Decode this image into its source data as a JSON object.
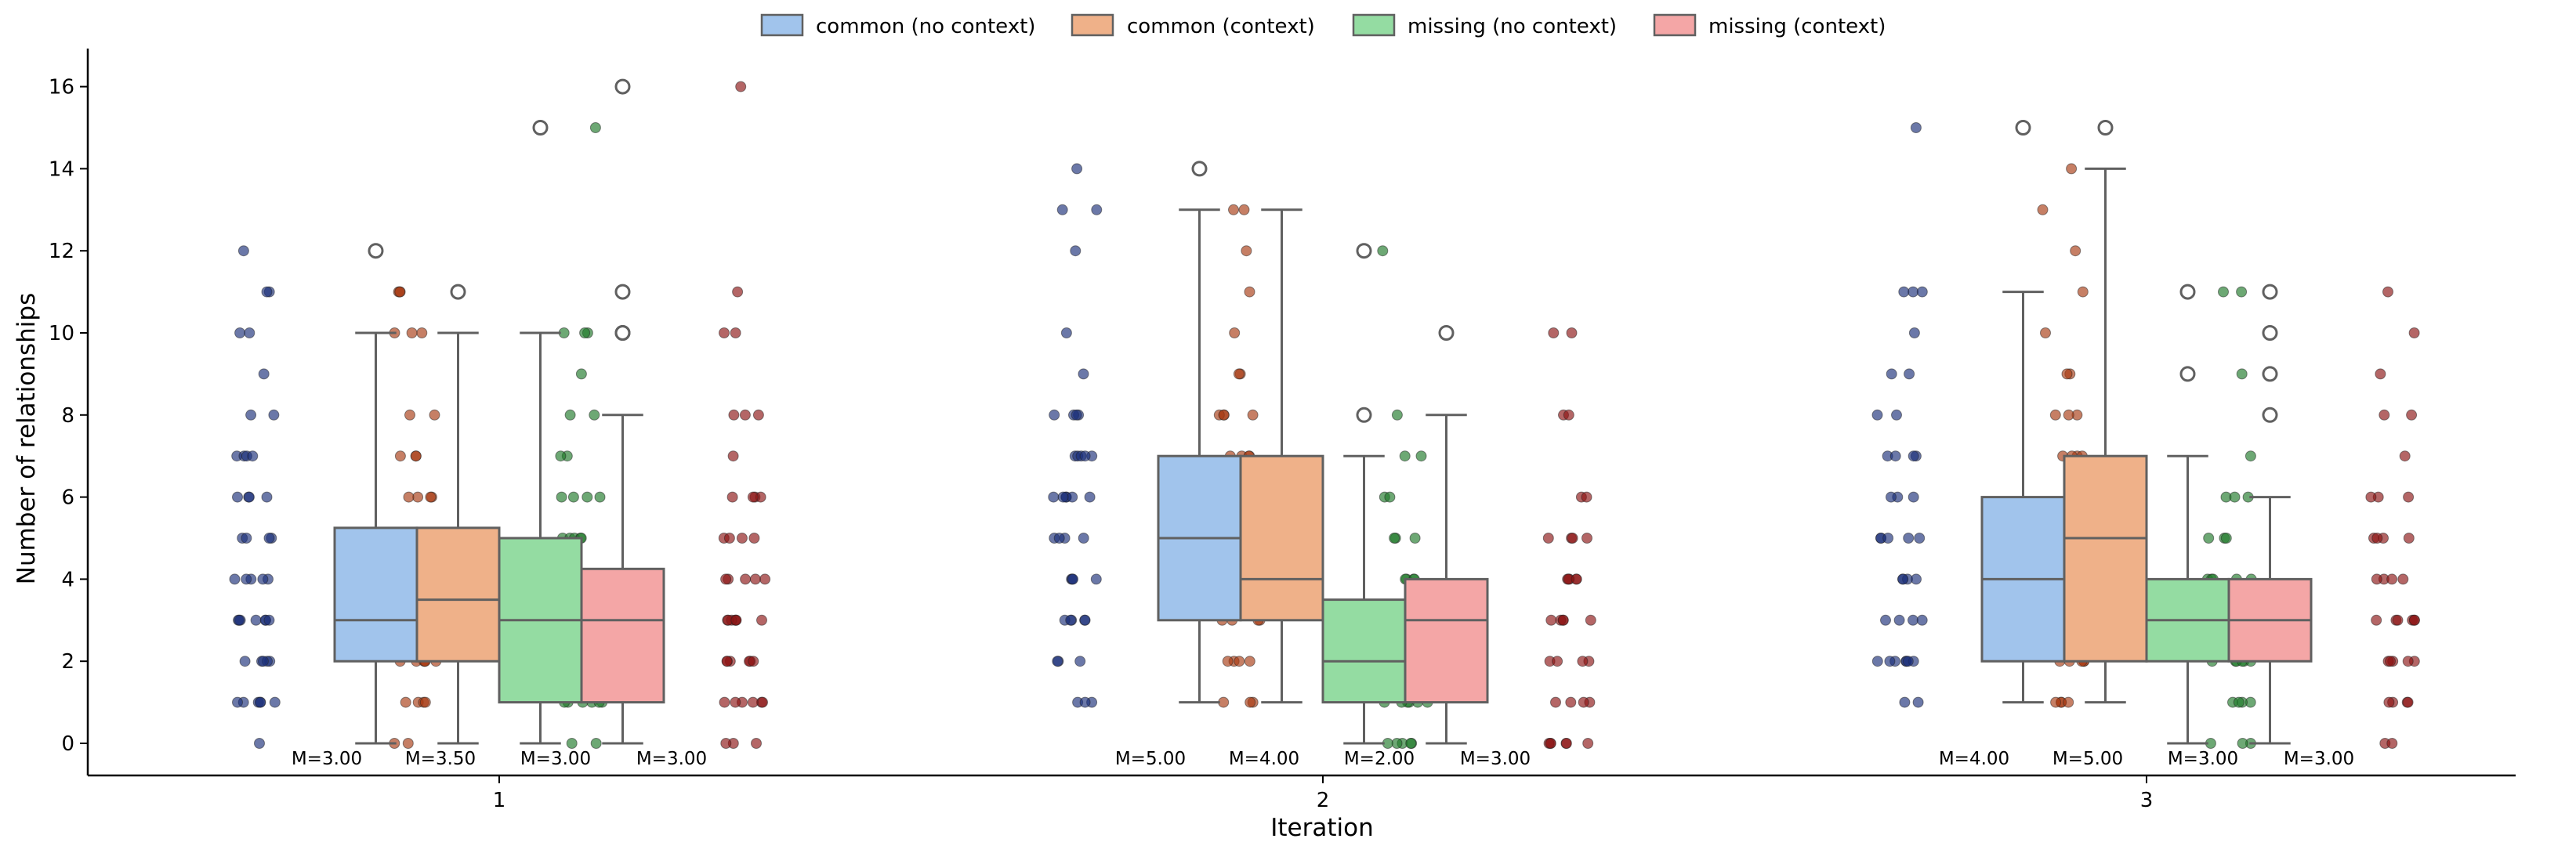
{
  "chart_data": {
    "type": "box",
    "title": "",
    "xlabel": "Iteration",
    "ylabel": "Number of relationships",
    "categories": [
      "1",
      "2",
      "3"
    ],
    "yticks": [
      0,
      2,
      4,
      6,
      8,
      10,
      12,
      14,
      16
    ],
    "ylim": [
      -0.8,
      16.8
    ],
    "legend_position": "top-center",
    "series": [
      {
        "name": "common (no context)",
        "color": "#a1c4ec",
        "edge_color": "#555555",
        "point_color": "#1c2f7a",
        "boxes": [
          {
            "q1": 2,
            "median": 3,
            "q3": 5.25,
            "whisker_low": 0,
            "whisker_high": 10,
            "outliers": [
              12
            ],
            "median_label": "M=3.00"
          },
          {
            "q1": 3,
            "median": 5,
            "q3": 7,
            "whisker_low": 1,
            "whisker_high": 13,
            "outliers": [
              14
            ],
            "median_label": "M=5.00"
          },
          {
            "q1": 2,
            "median": 4,
            "q3": 6,
            "whisker_low": 1,
            "whisker_high": 11,
            "outliers": [
              15
            ],
            "median_label": "M=4.00"
          }
        ],
        "points": [
          [
            0,
            1,
            1,
            1,
            1,
            1,
            1,
            2,
            2,
            2,
            2,
            2,
            3,
            3,
            3,
            3,
            3,
            3,
            3,
            4,
            4,
            4,
            4,
            4,
            5,
            5,
            5,
            5,
            6,
            6,
            6,
            6,
            7,
            7,
            7,
            7,
            8,
            8,
            9,
            10,
            10,
            11,
            11,
            12
          ],
          [
            1,
            1,
            1,
            2,
            2,
            2,
            3,
            3,
            3,
            3,
            3,
            4,
            4,
            4,
            4,
            5,
            5,
            5,
            5,
            6,
            6,
            6,
            6,
            6,
            6,
            7,
            7,
            7,
            7,
            7,
            8,
            8,
            8,
            8,
            9,
            10,
            12,
            13,
            13,
            14
          ],
          [
            1,
            1,
            2,
            2,
            2,
            2,
            2,
            2,
            2,
            3,
            3,
            3,
            3,
            4,
            4,
            4,
            4,
            5,
            5,
            5,
            5,
            5,
            6,
            6,
            6,
            7,
            7,
            7,
            7,
            8,
            8,
            9,
            9,
            10,
            11,
            11,
            11,
            15
          ]
        ]
      },
      {
        "name": "common (context)",
        "color": "#efb189",
        "edge_color": "#555555",
        "point_color": "#a83a12",
        "boxes": [
          {
            "q1": 2,
            "median": 3.5,
            "q3": 5.25,
            "whisker_low": 0,
            "whisker_high": 10,
            "outliers": [
              11
            ],
            "median_label": "M=3.50"
          },
          {
            "q1": 3,
            "median": 4,
            "q3": 7,
            "whisker_low": 1,
            "whisker_high": 13,
            "outliers": [],
            "median_label": "M=4.00"
          },
          {
            "q1": 2,
            "median": 5,
            "q3": 7,
            "whisker_low": 1,
            "whisker_high": 14,
            "outliers": [
              15
            ],
            "median_label": "M=5.00"
          }
        ],
        "points": [
          [
            0,
            0,
            1,
            1,
            1,
            1,
            2,
            2,
            2,
            2,
            2,
            2,
            3,
            3,
            3,
            3,
            3,
            4,
            4,
            4,
            4,
            4,
            5,
            5,
            5,
            5,
            6,
            6,
            6,
            6,
            7,
            7,
            7,
            8,
            8,
            10,
            10,
            10,
            11,
            11,
            11
          ],
          [
            1,
            1,
            1,
            2,
            2,
            2,
            2,
            3,
            3,
            3,
            3,
            4,
            4,
            4,
            4,
            4,
            5,
            5,
            5,
            5,
            6,
            6,
            6,
            6,
            7,
            7,
            7,
            7,
            8,
            8,
            8,
            8,
            9,
            9,
            10,
            11,
            12,
            13,
            13
          ],
          [
            1,
            1,
            1,
            1,
            2,
            2,
            2,
            2,
            2,
            3,
            3,
            3,
            3,
            4,
            4,
            4,
            4,
            5,
            5,
            5,
            5,
            6,
            6,
            6,
            7,
            7,
            7,
            7,
            8,
            8,
            8,
            9,
            9,
            10,
            11,
            12,
            13,
            14
          ]
        ]
      },
      {
        "name": "missing (no context)",
        "color": "#94dca2",
        "edge_color": "#555555",
        "point_color": "#1f7a2a",
        "boxes": [
          {
            "q1": 1,
            "median": 3,
            "q3": 5,
            "whisker_low": 0,
            "whisker_high": 10,
            "outliers": [
              15
            ],
            "median_label": "M=3.00"
          },
          {
            "q1": 1,
            "median": 2,
            "q3": 3.5,
            "whisker_low": 0,
            "whisker_high": 7,
            "outliers": [
              8,
              12
            ],
            "median_label": "M=2.00"
          },
          {
            "q1": 2,
            "median": 3,
            "q3": 4,
            "whisker_low": 0,
            "whisker_high": 7,
            "outliers": [
              9,
              11
            ],
            "median_label": "M=3.00"
          }
        ],
        "points": [
          [
            0,
            0,
            1,
            1,
            1,
            1,
            1,
            1,
            2,
            2,
            2,
            2,
            2,
            3,
            3,
            3,
            3,
            3,
            3,
            4,
            4,
            4,
            4,
            5,
            5,
            5,
            5,
            5,
            6,
            6,
            6,
            6,
            7,
            7,
            8,
            8,
            9,
            10,
            10,
            10,
            15
          ],
          [
            0,
            0,
            0,
            0,
            0,
            1,
            1,
            1,
            1,
            1,
            1,
            2,
            2,
            2,
            2,
            2,
            3,
            3,
            3,
            3,
            3,
            3,
            4,
            4,
            4,
            4,
            5,
            5,
            5,
            6,
            6,
            7,
            7,
            8,
            12
          ],
          [
            0,
            0,
            0,
            1,
            1,
            1,
            1,
            2,
            2,
            2,
            2,
            2,
            2,
            3,
            3,
            3,
            3,
            3,
            4,
            4,
            4,
            4,
            4,
            5,
            5,
            5,
            6,
            6,
            6,
            7,
            9,
            11,
            11
          ]
        ]
      },
      {
        "name": "missing (context)",
        "color": "#f4a6a6",
        "edge_color": "#555555",
        "point_color": "#8c1414",
        "boxes": [
          {
            "q1": 1,
            "median": 3,
            "q3": 4.25,
            "whisker_low": 0,
            "whisker_high": 8,
            "outliers": [
              10,
              10,
              11,
              16
            ],
            "median_label": "M=3.00"
          },
          {
            "q1": 1,
            "median": 3,
            "q3": 4,
            "whisker_low": 0,
            "whisker_high": 8,
            "outliers": [
              10
            ],
            "median_label": "M=3.00"
          },
          {
            "q1": 2,
            "median": 3,
            "q3": 4,
            "whisker_low": 0,
            "whisker_high": 6,
            "outliers": [
              8,
              9,
              10,
              11
            ],
            "median_label": "M=3.00"
          }
        ],
        "points": [
          [
            0,
            0,
            0,
            1,
            1,
            1,
            1,
            1,
            1,
            2,
            2,
            2,
            2,
            2,
            2,
            3,
            3,
            3,
            3,
            3,
            3,
            3,
            4,
            4,
            4,
            4,
            4,
            5,
            5,
            5,
            5,
            6,
            6,
            6,
            6,
            7,
            8,
            8,
            8,
            10,
            10,
            11,
            16
          ],
          [
            0,
            0,
            0,
            0,
            0,
            0,
            1,
            1,
            1,
            1,
            2,
            2,
            2,
            2,
            3,
            3,
            3,
            3,
            3,
            4,
            4,
            4,
            4,
            4,
            5,
            5,
            5,
            5,
            6,
            6,
            8,
            8,
            10,
            10
          ],
          [
            0,
            0,
            1,
            1,
            1,
            1,
            2,
            2,
            2,
            2,
            2,
            3,
            3,
            3,
            3,
            3,
            3,
            4,
            4,
            4,
            4,
            5,
            5,
            5,
            5,
            6,
            6,
            6,
            7,
            8,
            8,
            9,
            10,
            11
          ]
        ]
      }
    ]
  }
}
